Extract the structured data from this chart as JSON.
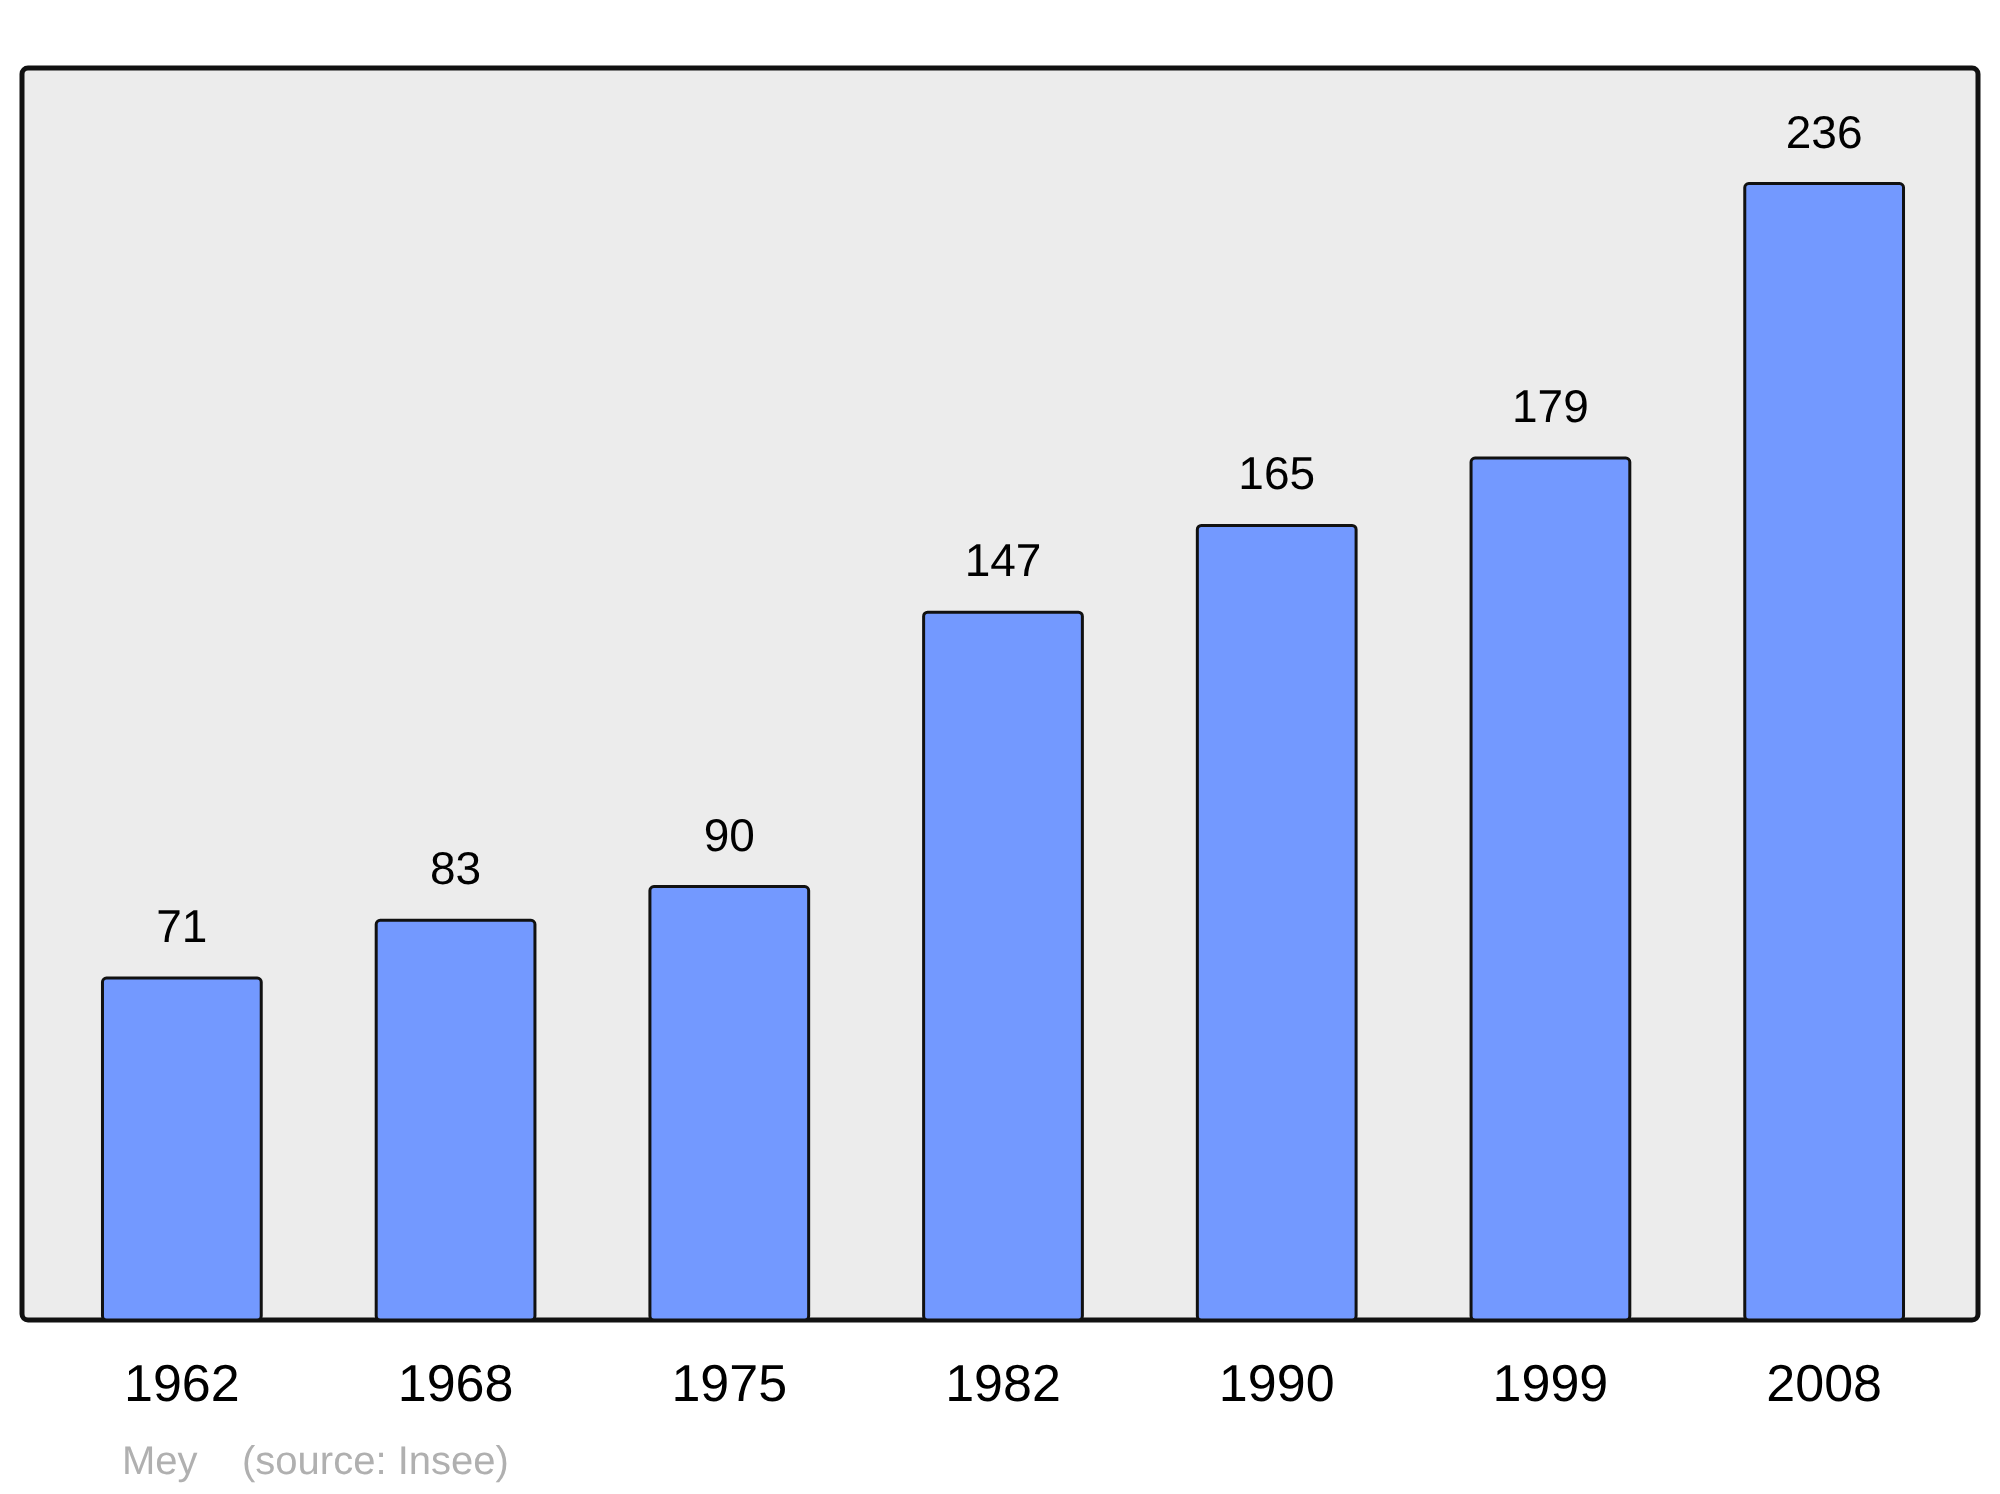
{
  "chart_data": {
    "type": "bar",
    "categories": [
      "1962",
      "1968",
      "1975",
      "1982",
      "1990",
      "1999",
      "2008"
    ],
    "values": [
      71,
      83,
      90,
      147,
      165,
      179,
      236
    ],
    "color": "#7399ff",
    "ylim": [
      0,
      260
    ],
    "data_labels": true,
    "annotations": [
      "Mey    (source: Insee)"
    ]
  }
}
